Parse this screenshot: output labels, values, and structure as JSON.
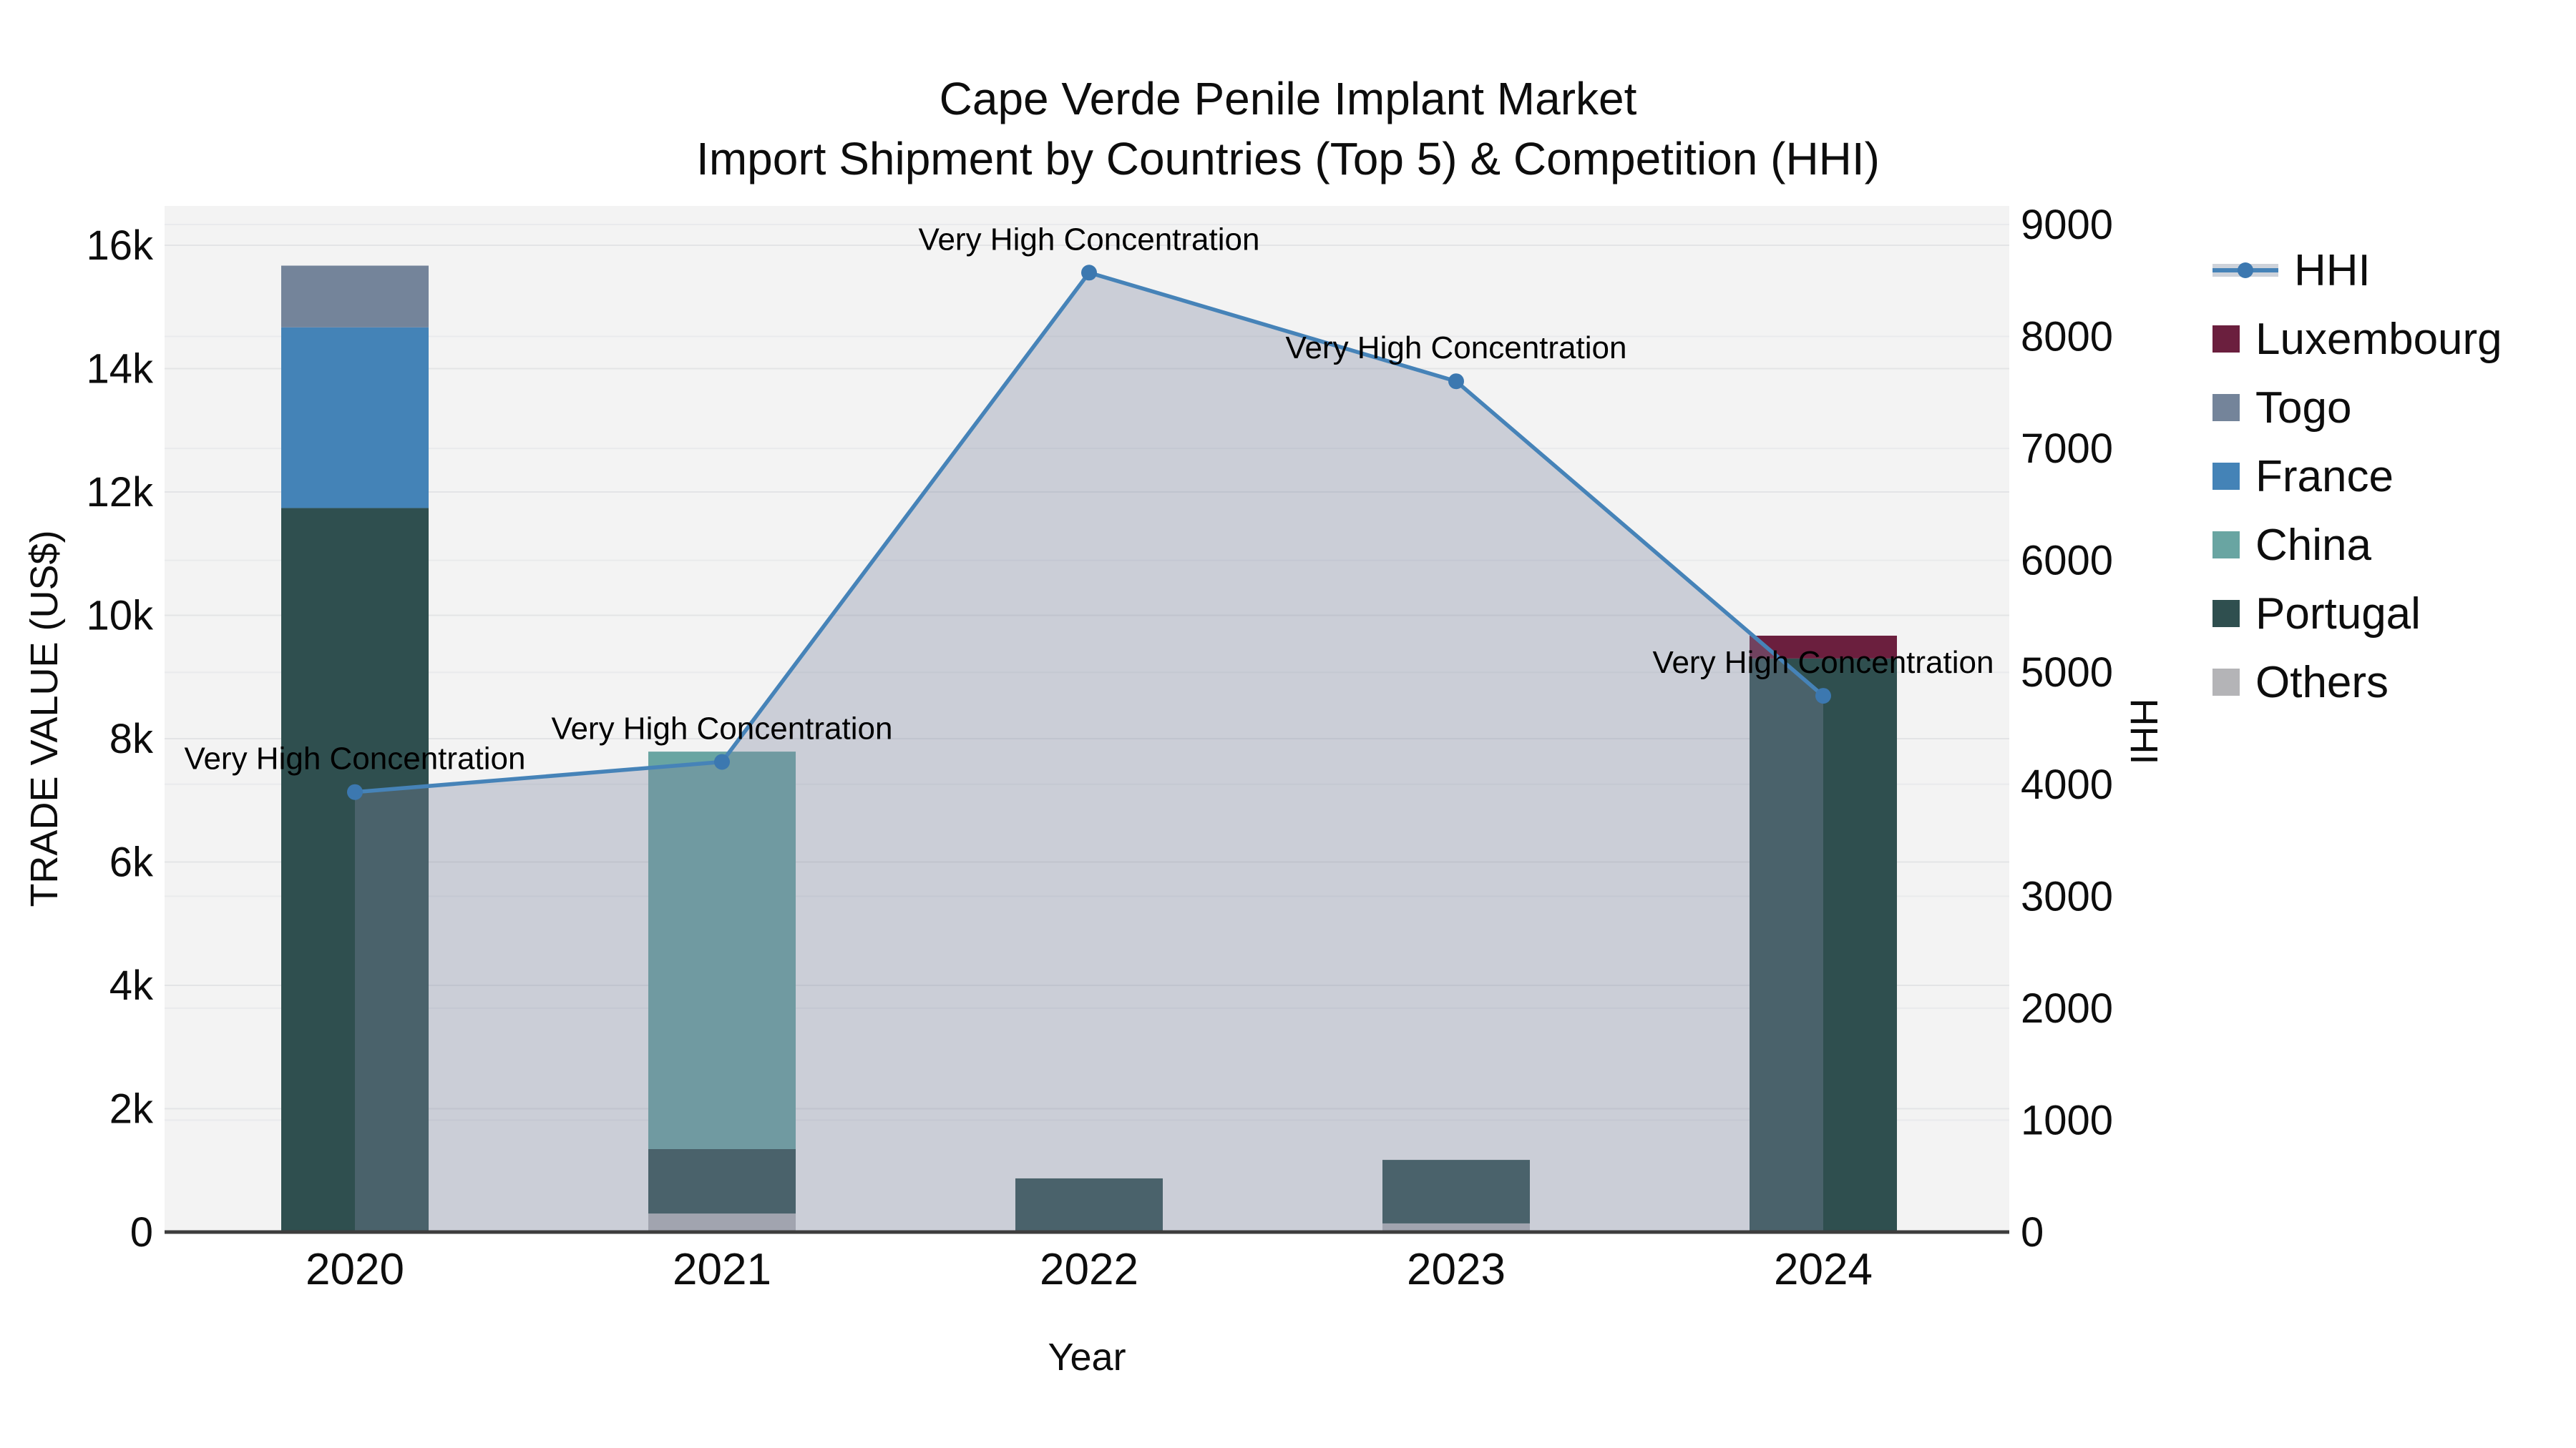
{
  "title": {
    "line1": "Cape Verde Penile Implant Market",
    "line2": "Import Shipment by Countries (Top 5) & Competition (HHI)"
  },
  "legend": {
    "items": [
      {
        "label": "HHI",
        "type": "line",
        "color": "#4683b8"
      },
      {
        "label": "Luxembourg",
        "type": "bar",
        "color": "#6b1f3e"
      },
      {
        "label": "Togo",
        "type": "bar",
        "color": "#74849a"
      },
      {
        "label": "France",
        "type": "bar",
        "color": "#4483b7"
      },
      {
        "label": "China",
        "type": "bar",
        "color": "#69a5a2"
      },
      {
        "label": "Portugal",
        "type": "bar",
        "color": "#2f4f4f"
      },
      {
        "label": "Others",
        "type": "bar",
        "color": "#b4b4b7"
      }
    ]
  },
  "chart_data": {
    "type": "combo-stacked-bar-line",
    "categories": [
      "2020",
      "2021",
      "2022",
      "2023",
      "2024"
    ],
    "bar_series": [
      {
        "name": "Others",
        "color": "#b4b4b7",
        "values": [
          0,
          300,
          0,
          140,
          0
        ]
      },
      {
        "name": "Portugal",
        "color": "#2f4f4f",
        "values": [
          11740,
          1045,
          870,
          1030,
          9300
        ]
      },
      {
        "name": "China",
        "color": "#69a5a2",
        "values": [
          0,
          6445,
          0,
          0,
          0
        ]
      },
      {
        "name": "France",
        "color": "#4483b7",
        "values": [
          2930,
          0,
          0,
          0,
          0
        ]
      },
      {
        "name": "Togo",
        "color": "#74849a",
        "values": [
          1000,
          0,
          0,
          0,
          0
        ]
      },
      {
        "name": "Luxembourg",
        "color": "#6b1f3e",
        "values": [
          0,
          0,
          0,
          0,
          370
        ]
      }
    ],
    "line_series": {
      "name": "HHI",
      "values": [
        3930,
        4200,
        8570,
        7600,
        4790
      ],
      "line_color": "#4683b8",
      "marker_color": "#3c78b0",
      "fill_color": "rgb(126,136,160)",
      "fill_opacity": 0.34
    },
    "annotations": [
      "Very High Concentration",
      "Very High Concentration",
      "Very High Concentration",
      "Very High Concentration",
      "Very High Concentration"
    ],
    "left_axis": {
      "title": "TRADE VALUE (US$)",
      "tick_values": [
        0,
        2000,
        4000,
        6000,
        8000,
        10000,
        12000,
        14000,
        16000
      ],
      "tick_labels": [
        "0",
        "2k",
        "4k",
        "6k",
        "8k",
        "10k",
        "12k",
        "14k",
        "16k"
      ],
      "range": [
        0,
        16638
      ]
    },
    "right_axis": {
      "title": "HHI",
      "tick_values": [
        0,
        1000,
        2000,
        3000,
        4000,
        5000,
        6000,
        7000,
        8000,
        9000
      ],
      "tick_labels": [
        "0",
        "1000",
        "2000",
        "3000",
        "4000",
        "5000",
        "6000",
        "7000",
        "8000",
        "9000"
      ],
      "range": [
        0,
        9166
      ]
    },
    "x_axis": {
      "title": "Year"
    },
    "layout": {
      "plot_bg": "#f3f3f3",
      "grid_color_major": "#e3e4e6",
      "grid_color_secondary": "#e9eaec",
      "axis_line_color": "#3d3d3d",
      "legend_position": "right"
    }
  }
}
